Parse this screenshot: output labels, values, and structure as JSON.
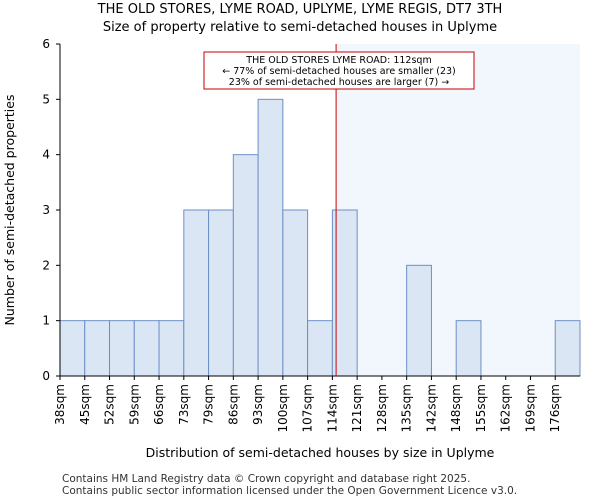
{
  "chart_data": {
    "type": "bar",
    "title": "THE OLD STORES, LYME ROAD, UPLYME, LYME REGIS, DT7 3TH",
    "subtitle": "Size of property relative to semi-detached houses in Uplyme",
    "xlabel": "Distribution of semi-detached houses by size in Uplyme",
    "ylabel": "Number of semi-detached properties",
    "categories": [
      "38sqm",
      "45sqm",
      "52sqm",
      "59sqm",
      "66sqm",
      "73sqm",
      "79sqm",
      "86sqm",
      "93sqm",
      "100sqm",
      "107sqm",
      "114sqm",
      "121sqm",
      "128sqm",
      "135sqm",
      "142sqm",
      "148sqm",
      "155sqm",
      "162sqm",
      "169sqm",
      "176sqm"
    ],
    "values": [
      1,
      1,
      1,
      1,
      1,
      3,
      3,
      4,
      5,
      3,
      1,
      3,
      0,
      0,
      2,
      0,
      1,
      0,
      0,
      0,
      1
    ],
    "ylim": [
      0,
      6
    ],
    "yticks": [
      0,
      1,
      2,
      3,
      4,
      5,
      6
    ],
    "property_size_sqm": 112,
    "marker_bin_position": 11.15,
    "annotation": {
      "line1": "THE OLD STORES LYME ROAD: 112sqm",
      "line2": "← 77% of semi-detached houses are smaller (23)",
      "line3": "23% of semi-detached houses are larger (7) →"
    },
    "colors": {
      "bar_fill": "#dbe6f5",
      "bar_stroke": "#6b8fc7",
      "highlight_bg": "#f2f6fd",
      "marker": "#cc0000"
    }
  },
  "footer": {
    "line1": "Contains HM Land Registry data © Crown copyright and database right 2025.",
    "line2": "Contains public sector information licensed under the Open Government Licence v3.0."
  }
}
